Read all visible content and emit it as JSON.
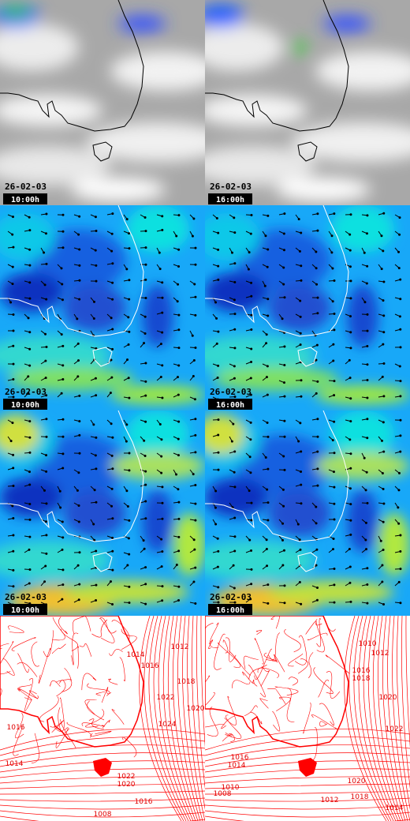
{
  "panels": [
    {
      "date": "26-02-03",
      "time": "10:00h"
    },
    {
      "date": "26-02-03",
      "time": "16:00h"
    },
    {
      "date": "26-02-03",
      "time": "10:00h"
    },
    {
      "date": "26-02-03",
      "time": "16:00h"
    },
    {
      "date": "26-02-03",
      "time": "10:00h"
    },
    {
      "date": "26-02-03",
      "time": "16:00h"
    }
  ],
  "isobars": [
    {
      "labels": [
        "1014",
        "1012",
        "1016",
        "1018",
        "1022",
        "1020",
        "1024",
        "1016",
        "1014",
        "1022",
        "1020",
        "1016",
        "1008"
      ]
    },
    {
      "labels": [
        "1010",
        "1012",
        "1016",
        "1018",
        "1020",
        "1022",
        "1016",
        "1014",
        "1020",
        "1018",
        "1010",
        "1012",
        "1014",
        "1008"
      ]
    }
  ]
}
